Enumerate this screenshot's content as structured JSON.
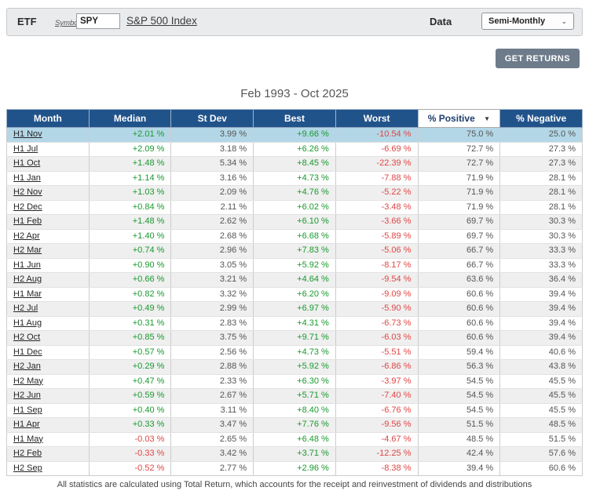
{
  "toolbar": {
    "etf_label": "ETF",
    "symbols_link": "Symbols",
    "symbol_value": "SPY",
    "index_link": "S&P 500 Index",
    "data_label": "Data",
    "data_select_value": "Semi-Monthly",
    "chevron": "⌄"
  },
  "get_returns_button": "GET RETURNS",
  "title": "Feb 1993 - Oct 2025",
  "table": {
    "headers": [
      "Month",
      "Median",
      "St Dev",
      "Best",
      "Worst",
      "% Positive",
      "% Negative"
    ],
    "sorted_column_index": 5,
    "sort_indicator": "▼",
    "highlighted_row": "H1 Nov",
    "rows": [
      {
        "month": "H1 Nov",
        "median": "+2.01 %",
        "st_dev": "3.99 %",
        "best": "+9.66 %",
        "worst": "-10.54 %",
        "pct_positive": "75.0 %",
        "pct_negative": "25.0 %"
      },
      {
        "month": "H1 Jul",
        "median": "+2.09 %",
        "st_dev": "3.18 %",
        "best": "+6.26 %",
        "worst": "-6.69 %",
        "pct_positive": "72.7 %",
        "pct_negative": "27.3 %"
      },
      {
        "month": "H1 Oct",
        "median": "+1.48 %",
        "st_dev": "5.34 %",
        "best": "+8.45 %",
        "worst": "-22.39 %",
        "pct_positive": "72.7 %",
        "pct_negative": "27.3 %"
      },
      {
        "month": "H1 Jan",
        "median": "+1.14 %",
        "st_dev": "3.16 %",
        "best": "+4.73 %",
        "worst": "-7.88 %",
        "pct_positive": "71.9 %",
        "pct_negative": "28.1 %"
      },
      {
        "month": "H2 Nov",
        "median": "+1.03 %",
        "st_dev": "2.09 %",
        "best": "+4.76 %",
        "worst": "-5.22 %",
        "pct_positive": "71.9 %",
        "pct_negative": "28.1 %"
      },
      {
        "month": "H2 Dec",
        "median": "+0.84 %",
        "st_dev": "2.11 %",
        "best": "+6.02 %",
        "worst": "-3.48 %",
        "pct_positive": "71.9 %",
        "pct_negative": "28.1 %"
      },
      {
        "month": "H1 Feb",
        "median": "+1.48 %",
        "st_dev": "2.62 %",
        "best": "+6.10 %",
        "worst": "-3.66 %",
        "pct_positive": "69.7 %",
        "pct_negative": "30.3 %"
      },
      {
        "month": "H2 Apr",
        "median": "+1.40 %",
        "st_dev": "2.68 %",
        "best": "+6.68 %",
        "worst": "-5.89 %",
        "pct_positive": "69.7 %",
        "pct_negative": "30.3 %"
      },
      {
        "month": "H2 Mar",
        "median": "+0.74 %",
        "st_dev": "2.96 %",
        "best": "+7.83 %",
        "worst": "-5.06 %",
        "pct_positive": "66.7 %",
        "pct_negative": "33.3 %"
      },
      {
        "month": "H1 Jun",
        "median": "+0.90 %",
        "st_dev": "3.05 %",
        "best": "+5.92 %",
        "worst": "-8.17 %",
        "pct_positive": "66.7 %",
        "pct_negative": "33.3 %"
      },
      {
        "month": "H2 Aug",
        "median": "+0.66 %",
        "st_dev": "3.21 %",
        "best": "+4.64 %",
        "worst": "-9.54 %",
        "pct_positive": "63.6 %",
        "pct_negative": "36.4 %"
      },
      {
        "month": "H1 Mar",
        "median": "+0.82 %",
        "st_dev": "3.32 %",
        "best": "+6.20 %",
        "worst": "-9.09 %",
        "pct_positive": "60.6 %",
        "pct_negative": "39.4 %"
      },
      {
        "month": "H2 Jul",
        "median": "+0.49 %",
        "st_dev": "2.99 %",
        "best": "+6.97 %",
        "worst": "-5.90 %",
        "pct_positive": "60.6 %",
        "pct_negative": "39.4 %"
      },
      {
        "month": "H1 Aug",
        "median": "+0.31 %",
        "st_dev": "2.83 %",
        "best": "+4.31 %",
        "worst": "-6.73 %",
        "pct_positive": "60.6 %",
        "pct_negative": "39.4 %"
      },
      {
        "month": "H2 Oct",
        "median": "+0.85 %",
        "st_dev": "3.75 %",
        "best": "+9.71 %",
        "worst": "-6.03 %",
        "pct_positive": "60.6 %",
        "pct_negative": "39.4 %"
      },
      {
        "month": "H1 Dec",
        "median": "+0.57 %",
        "st_dev": "2.56 %",
        "best": "+4.73 %",
        "worst": "-5.51 %",
        "pct_positive": "59.4 %",
        "pct_negative": "40.6 %"
      },
      {
        "month": "H2 Jan",
        "median": "+0.29 %",
        "st_dev": "2.88 %",
        "best": "+5.92 %",
        "worst": "-6.86 %",
        "pct_positive": "56.3 %",
        "pct_negative": "43.8 %"
      },
      {
        "month": "H2 May",
        "median": "+0.47 %",
        "st_dev": "2.33 %",
        "best": "+6.30 %",
        "worst": "-3.97 %",
        "pct_positive": "54.5 %",
        "pct_negative": "45.5 %"
      },
      {
        "month": "H2 Jun",
        "median": "+0.59 %",
        "st_dev": "2.67 %",
        "best": "+5.71 %",
        "worst": "-7.40 %",
        "pct_positive": "54.5 %",
        "pct_negative": "45.5 %"
      },
      {
        "month": "H1 Sep",
        "median": "+0.40 %",
        "st_dev": "3.11 %",
        "best": "+8.40 %",
        "worst": "-6.76 %",
        "pct_positive": "54.5 %",
        "pct_negative": "45.5 %"
      },
      {
        "month": "H1 Apr",
        "median": "+0.33 %",
        "st_dev": "3.47 %",
        "best": "+7.76 %",
        "worst": "-9.56 %",
        "pct_positive": "51.5 %",
        "pct_negative": "48.5 %"
      },
      {
        "month": "H1 May",
        "median": "-0.03 %",
        "st_dev": "2.65 %",
        "best": "+6.48 %",
        "worst": "-4.67 %",
        "pct_positive": "48.5 %",
        "pct_negative": "51.5 %"
      },
      {
        "month": "H2 Feb",
        "median": "-0.33 %",
        "st_dev": "3.42 %",
        "best": "+3.71 %",
        "worst": "-12.25 %",
        "pct_positive": "42.4 %",
        "pct_negative": "57.6 %"
      },
      {
        "month": "H2 Sep",
        "median": "-0.52 %",
        "st_dev": "2.77 %",
        "best": "+2.96 %",
        "worst": "-8.38 %",
        "pct_positive": "39.4 %",
        "pct_negative": "60.6 %"
      }
    ]
  },
  "footer_note": "All statistics are calculated using Total Return, which accounts for the receipt and reinvestment of dividends and distributions",
  "colors": {
    "header_bg": "#21538b",
    "highlight_row_bg": "#b4d7e7",
    "stripe_bg": "#efefef",
    "positive_text": "#189a2e",
    "negative_text": "#e04545",
    "button_bg": "#6d7b8a",
    "toolbar_bg": "#e9ebed"
  }
}
